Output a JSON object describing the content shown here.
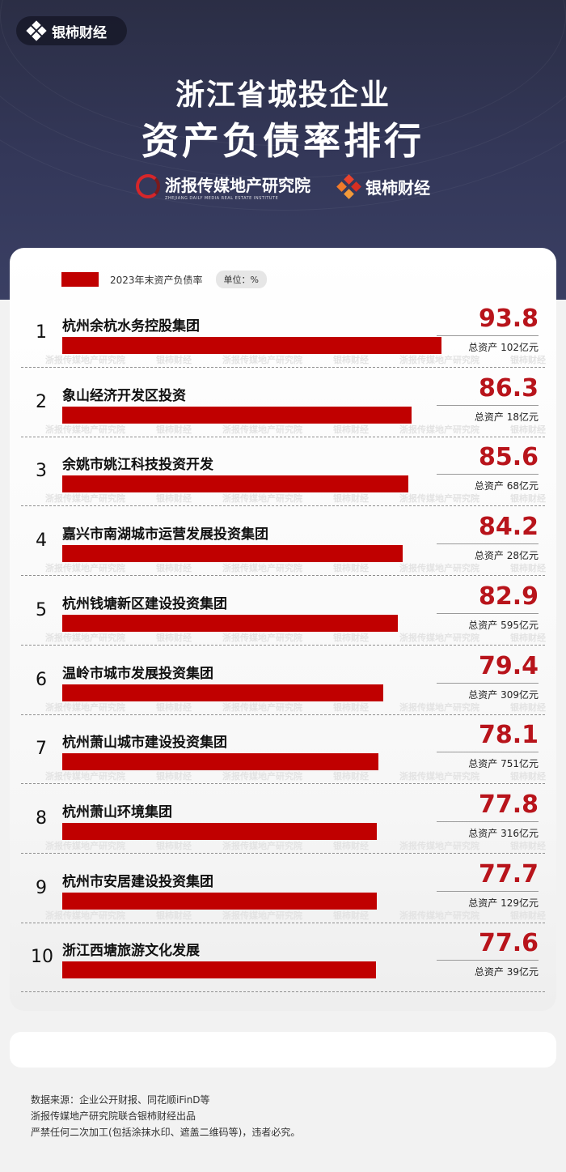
{
  "brand": {
    "name": "银柿财经"
  },
  "header": {
    "title_line1": "浙江省城投企业",
    "title_line2": "资产负债率排行",
    "org1_name": "浙报传媒地产研究院",
    "org1_sub": "ZHEJIANG DAILY MEDIA REAL ESTATE INSTITUTE",
    "org2_name": "银柿财经"
  },
  "legend": {
    "label": "2023年末资产负债率",
    "unit": "单位：%"
  },
  "watermark": {
    "text1": "浙报传媒地产研究院",
    "text2": "银柿财经"
  },
  "colors": {
    "bar": "#c00000",
    "value": "#b8141b",
    "header": "#2b2e45"
  },
  "chart_data": {
    "type": "bar",
    "orientation": "horizontal",
    "title": "资产负债率排行",
    "ylabel": "2023年末资产负债率",
    "unit": "%",
    "xlim": [
      0,
      100
    ],
    "grid": false,
    "legend_position": "top-left",
    "categories": [
      "杭州余杭水务控股集团",
      "象山经济开发区投资",
      "余姚市姚江科技投资开发",
      "嘉兴市南湖城市运营发展投资集团",
      "杭州钱塘新区建设投资集团",
      "温岭市城市发展投资集团",
      "杭州萧山城市建设投资集团",
      "杭州萧山环境集团",
      "杭州市安居建设投资集团",
      "浙江西塘旅游文化发展"
    ],
    "ranks": [
      "1",
      "2",
      "3",
      "4",
      "5",
      "6",
      "7",
      "8",
      "9",
      "10"
    ],
    "values": [
      93.8,
      86.3,
      85.6,
      84.2,
      82.9,
      79.4,
      78.1,
      77.8,
      77.7,
      77.6
    ],
    "value_labels": [
      "93.8",
      "86.3",
      "85.6",
      "84.2",
      "82.9",
      "79.4",
      "78.1",
      "77.8",
      "77.7",
      "77.6"
    ],
    "total_assets": [
      "总资产 102亿元",
      "总资产 18亿元",
      "总资产 68亿元",
      "总资产 28亿元",
      "总资产 595亿元",
      "总资产 309亿元",
      "总资产 751亿元",
      "总资产 316亿元",
      "总资产 129亿元",
      "总资产 39亿元"
    ]
  },
  "footer": {
    "line1": "数据来源：企业公开财报、同花顺iFinD等",
    "line2": "浙报传媒地产研究院联合银柿财经出品",
    "line3": "严禁任何二次加工(包括涂抹水印、遮盖二维码等)，违者必究。"
  }
}
